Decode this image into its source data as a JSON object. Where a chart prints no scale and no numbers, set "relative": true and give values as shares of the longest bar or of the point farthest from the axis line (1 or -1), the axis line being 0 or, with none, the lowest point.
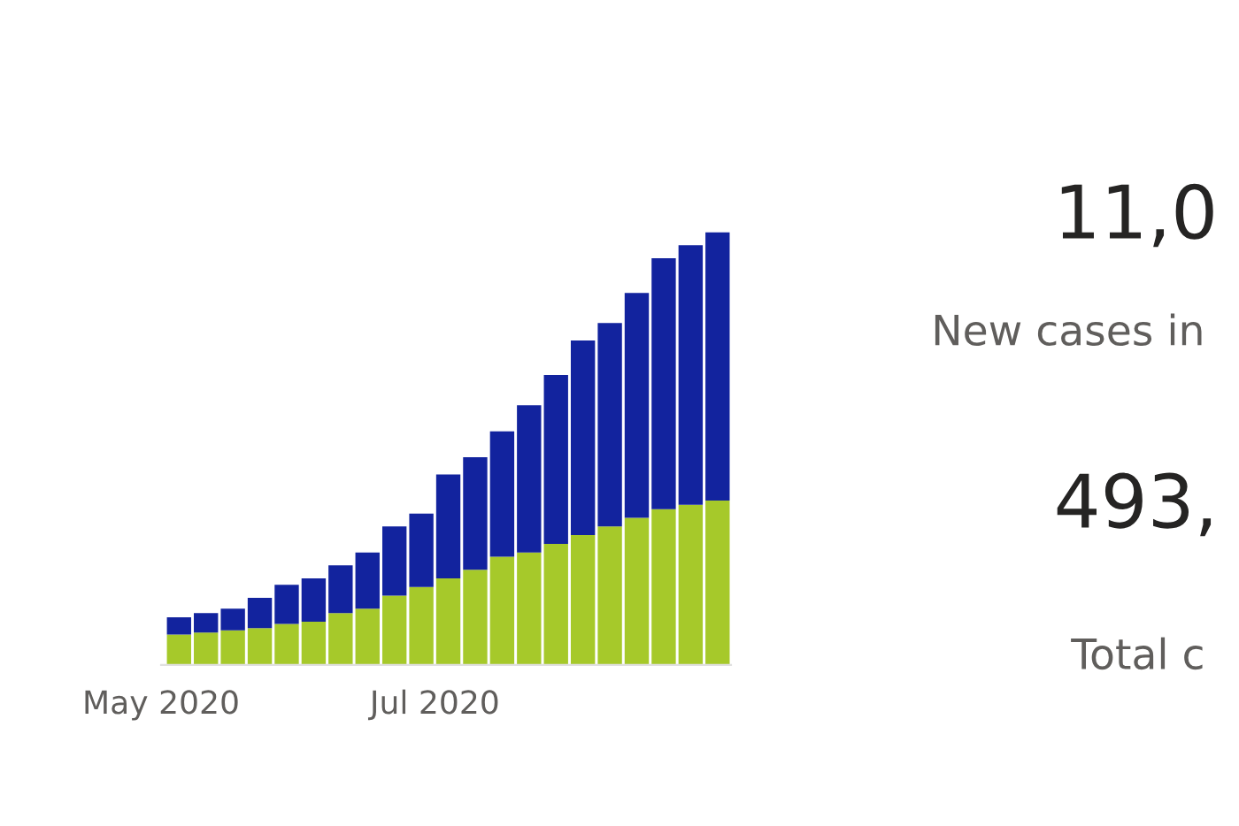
{
  "chart_data": [
    {
      "type": "bar",
      "stacked": true,
      "relative": true,
      "x": [
        "2020-05-05",
        "2020-05-11",
        "2020-05-17",
        "2020-05-23",
        "2020-05-29",
        "2020-06-04",
        "2020-06-10",
        "2020-06-16",
        "2020-06-22",
        "2020-06-28",
        "2020-07-04",
        "2020-07-10",
        "2020-07-16",
        "2020-07-22",
        "2020-07-28",
        "2020-08-03",
        "2020-08-09",
        "2020-08-15",
        "2020-08-21",
        "2020-08-27",
        "2020-09-02"
      ],
      "xlim": [
        "2020-05-01",
        "2020-09-05"
      ],
      "xticks": [
        {
          "value": "2020-05-01",
          "label": "May 2020"
        },
        {
          "value": "2020-07-01",
          "label": "Jul 2020"
        }
      ],
      "series": [
        {
          "color": "#a6c92a",
          "values": [
            0.07,
            0.075,
            0.08,
            0.085,
            0.095,
            0.1,
            0.12,
            0.13,
            0.16,
            0.18,
            0.2,
            0.22,
            0.25,
            0.26,
            0.28,
            0.3,
            0.32,
            0.34,
            0.36,
            0.37,
            0.38
          ]
        },
        {
          "color": "#12239e",
          "values": [
            0.04,
            0.045,
            0.05,
            0.07,
            0.09,
            0.1,
            0.11,
            0.13,
            0.16,
            0.17,
            0.24,
            0.26,
            0.29,
            0.34,
            0.39,
            0.45,
            0.47,
            0.52,
            0.58,
            0.6,
            0.62
          ]
        }
      ]
    },
    {
      "type": "other",
      "annotations": [
        "11,0",
        "New cases in",
        "493,",
        "Total c"
      ]
    }
  ]
}
